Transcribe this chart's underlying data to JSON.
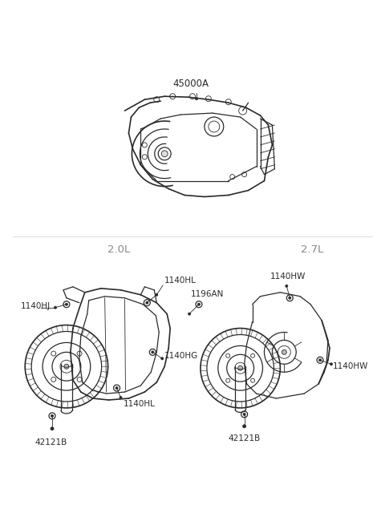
{
  "bg_color": "#ffffff",
  "lc": "#2a2a2a",
  "lc_gray": "#888888",
  "top_label": "45000A",
  "label_2_0L": "2.0L",
  "label_2_7L": "2.7L",
  "label_1140HJ": "1140HJ",
  "label_1140HL_top": "1140HL",
  "label_1140HL_bot": "1140HL",
  "label_1140HG": "1140HG",
  "label_42121B_L": "42121B",
  "label_1196AN": "1196AN",
  "label_1140HW_top": "1140HW",
  "label_1140HW_bot": "1140HW",
  "label_42121B_R": "42121B",
  "lw": 0.9,
  "lw_thin": 0.6,
  "lw_thick": 1.2,
  "fs_label": 7.5,
  "fs_engine": 9.5
}
